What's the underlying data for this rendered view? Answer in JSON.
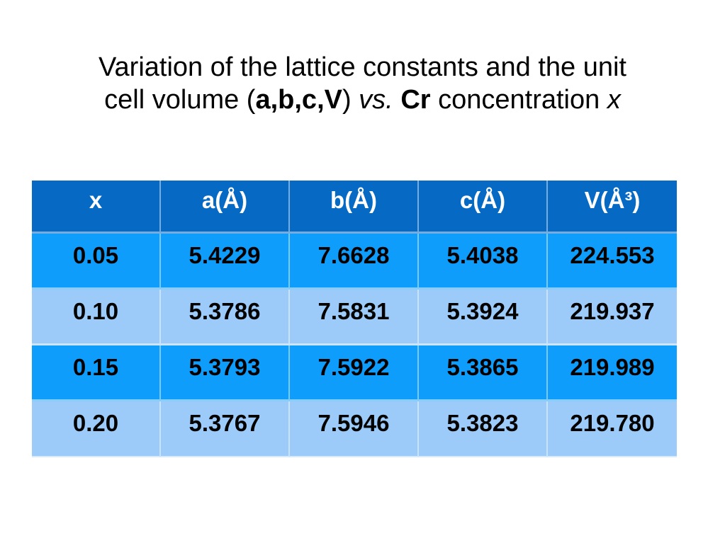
{
  "slide": {
    "title": {
      "line1": "Variation of the lattice constants and the unit",
      "line2": {
        "pre": "cell volume (",
        "abcv": "a,b,c,V",
        "close": ")",
        "vs": " vs. ",
        "cr": "Cr",
        "concentration": " concentration ",
        "x": "x"
      }
    },
    "colors": {
      "slide_bg": "#ffffff",
      "header_bg": "#0669c4",
      "row_blue": "#0f9dfc",
      "row_light_blue": "#9ccbfa",
      "header_text": "#ffffff",
      "body_text": "#000000"
    }
  },
  "table": {
    "headers": [
      "x",
      "a(Å)",
      "b(Å)",
      "c(Å)",
      "V(Å³)"
    ],
    "rows": [
      [
        "0.05",
        "5.4229",
        "7.6628",
        "5.4038",
        "224.553"
      ],
      [
        "0.10",
        "5.3786",
        "7.5831",
        "5.3924",
        "219.937"
      ],
      [
        "0.15",
        "5.3793",
        "7.5922",
        "5.3865",
        "219.989"
      ],
      [
        "0.20",
        "5.3767",
        "7.5946",
        "5.3823",
        "219.780"
      ]
    ]
  }
}
